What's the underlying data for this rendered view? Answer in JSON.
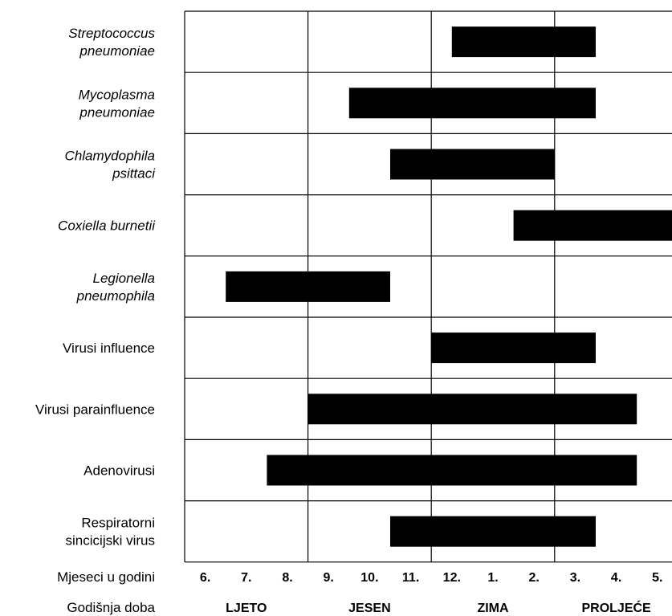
{
  "chart_data": {
    "type": "gantt",
    "x_axis_label": "Mjeseci u godini",
    "month_ticks": [
      "6.",
      "7.",
      "8.",
      "9.",
      "10.",
      "11.",
      "12.",
      "1.",
      "2.",
      "3.",
      "4.",
      "5."
    ],
    "season_axis_label": "Godišnja doba",
    "seasons": [
      {
        "label": "LJETO",
        "months": [
          "6.",
          "7.",
          "8."
        ]
      },
      {
        "label": "JESEN",
        "months": [
          "9.",
          "10.",
          "11."
        ]
      },
      {
        "label": "ZIMA",
        "months": [
          "12.",
          "1.",
          "2."
        ]
      },
      {
        "label": "PROLJEĆE",
        "months": [
          "3.",
          "4.",
          "5."
        ]
      }
    ],
    "rows": [
      {
        "lines": [
          "Streptococcus",
          "pneumoniae"
        ],
        "italic": true,
        "start": 6.5,
        "end": 10.0
      },
      {
        "lines": [
          "Mycoplasma",
          "pneumoniae"
        ],
        "italic": true,
        "start": 4.0,
        "end": 10.0
      },
      {
        "lines": [
          "Chlamydophila",
          "psittaci"
        ],
        "italic": true,
        "start": 5.0,
        "end": 9.0
      },
      {
        "lines": [
          "Coxiella burnetii"
        ],
        "italic": true,
        "start": 8.0,
        "end": 12.0
      },
      {
        "lines": [
          "Legionella",
          "pneumophila"
        ],
        "italic": true,
        "start": 1.0,
        "end": 5.0
      },
      {
        "lines": [
          "Virusi influence"
        ],
        "italic": false,
        "start": 6.0,
        "end": 10.0
      },
      {
        "lines": [
          "Virusi parainfluence"
        ],
        "italic": false,
        "start": 3.0,
        "end": 11.0
      },
      {
        "lines": [
          "Adenovirusi"
        ],
        "italic": false,
        "start": 2.0,
        "end": 11.0
      },
      {
        "lines": [
          "Respiratorni",
          "sincicijski virus"
        ],
        "italic": false,
        "start": 5.0,
        "end": 10.0
      }
    ]
  },
  "colors": {
    "bar": "#000000",
    "grid": "#000000",
    "background": "#ffffff"
  }
}
